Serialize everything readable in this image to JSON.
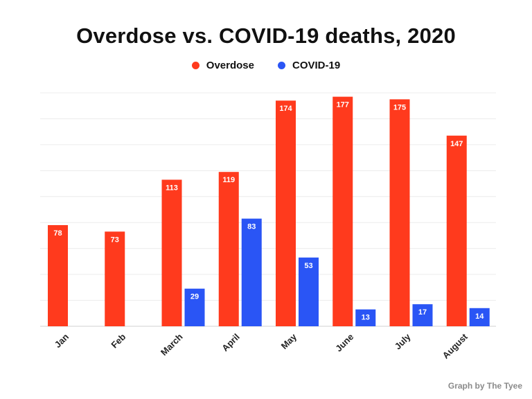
{
  "chart_data": {
    "type": "bar",
    "title": "Overdose vs. COVID-19 deaths, 2020",
    "categories": [
      "Jan",
      "Feb",
      "March",
      "April",
      "May",
      "June",
      "July",
      "August"
    ],
    "series": [
      {
        "name": "Overdose",
        "color": "#ff3a1d",
        "values": [
          78,
          73,
          113,
          119,
          174,
          177,
          175,
          147
        ]
      },
      {
        "name": "COVID-19",
        "color": "#2a55f5",
        "values": [
          null,
          null,
          29,
          83,
          53,
          13,
          17,
          14
        ]
      }
    ],
    "ylim": [
      0,
      180
    ],
    "grid": true,
    "legend_position": "top-center"
  },
  "credit": "Graph by The Tyee"
}
